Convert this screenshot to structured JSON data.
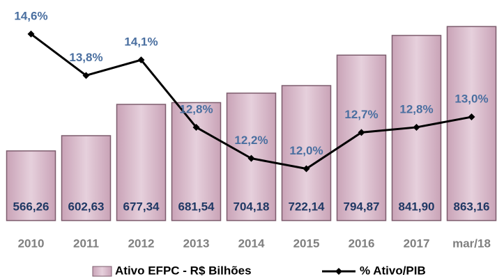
{
  "chart_data": {
    "type": "bar_line",
    "categories": [
      "2010",
      "2011",
      "2012",
      "2013",
      "2014",
      "2015",
      "2016",
      "2017",
      "mar/18"
    ],
    "series": [
      {
        "name": "Ativo EFPC - R$ Bilhões",
        "type": "bar",
        "color": "#d9bccb",
        "edge": "#7d5c6d",
        "values": [
          566.26,
          602.63,
          677.34,
          681.54,
          704.18,
          722.14,
          794.87,
          841.9,
          863.16
        ],
        "value_labels": [
          "566,26",
          "602,63",
          "677,34",
          "681,54",
          "704,18",
          "722,14",
          "794,87",
          "841,90",
          "863,16"
        ]
      },
      {
        "name": "% Ativo/PIB",
        "type": "line",
        "axis": "y2",
        "color": "#000000",
        "values": [
          14.6,
          13.8,
          14.1,
          12.8,
          12.2,
          12.0,
          12.7,
          12.8,
          13.0
        ],
        "value_labels": [
          "14,6%",
          "13,8%",
          "14,1%",
          "12,8%",
          "12,2%",
          "12,0%",
          "12,7%",
          "12,8%",
          "13,0%"
        ]
      }
    ],
    "ylim": [
      400,
      870
    ],
    "y2lim": [
      11,
      14.8
    ],
    "legend": "bottom"
  }
}
